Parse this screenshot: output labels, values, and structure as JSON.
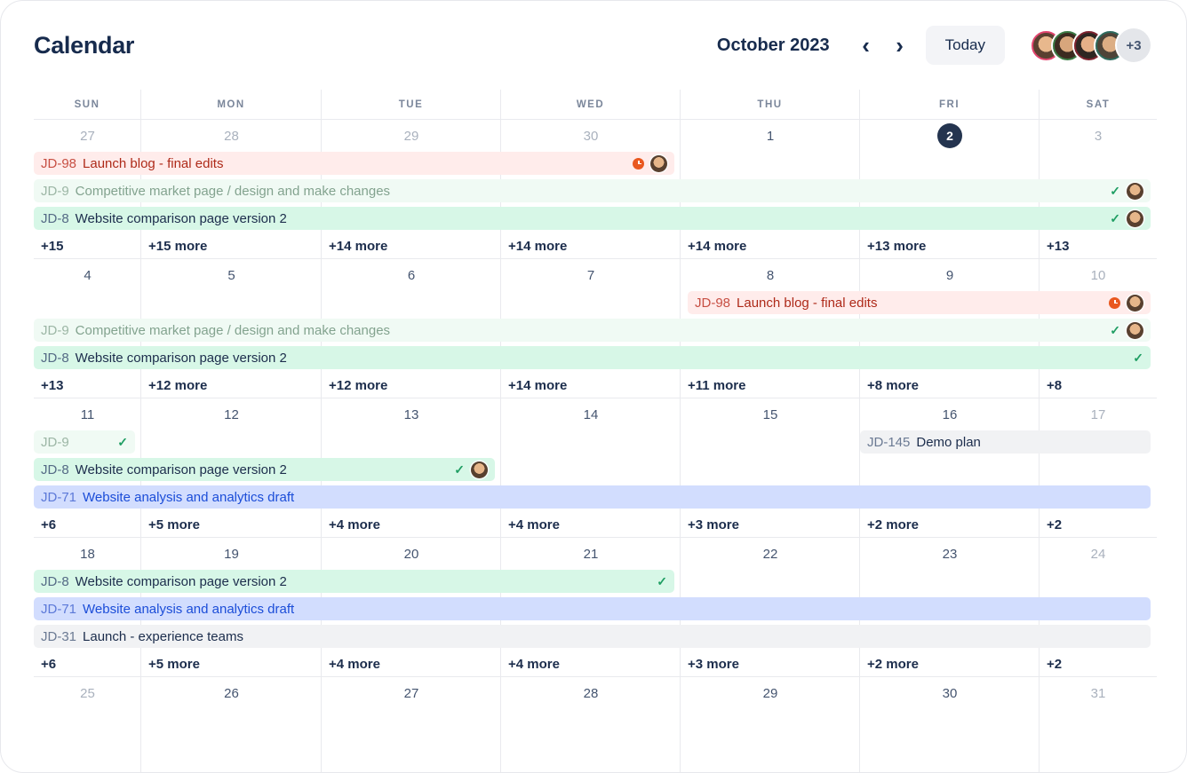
{
  "header": {
    "title": "Calendar",
    "month": "October 2023",
    "today_button": "Today",
    "avatar_overflow": "+3"
  },
  "icons": {
    "prev": "‹",
    "next": "›",
    "check": "✓"
  },
  "colors": {
    "accent_navy": "#172b4d",
    "today_circle": "#24344f",
    "event_red_bg": "#ffeceb",
    "event_red_text": "#ae2a19",
    "event_green_bg": "#d7f7e7",
    "event_green_done_bg": "#f0faf4",
    "event_green_done_text": "#83a38f",
    "event_blue_bg": "#d2ddfe",
    "event_blue_text": "#1b4dd8",
    "event_gray_bg": "#f1f2f4",
    "check_green": "#1f9e63",
    "overdue_orange": "#e9581f"
  },
  "day_headers": [
    "SUN",
    "MON",
    "TUE",
    "WED",
    "THU",
    "FRI",
    "SAT"
  ],
  "weeks": [
    {
      "dates": [
        "27",
        "28",
        "29",
        "30",
        "1",
        "2",
        "3"
      ],
      "events": [
        {
          "key": "JD-98",
          "summary": "Launch blog - final edits"
        },
        {
          "key": "JD-9",
          "summary": "Competitive market page / design and make changes"
        },
        {
          "key": "JD-8",
          "summary": "Website comparison page version 2"
        }
      ],
      "more": [
        "+15",
        "+15 more",
        "+14 more",
        "+14 more",
        "+14 more",
        "+13 more",
        "+13"
      ]
    },
    {
      "dates": [
        "4",
        "5",
        "6",
        "7",
        "8",
        "9",
        "10"
      ],
      "events": [
        {
          "key": "JD-98",
          "summary": "Launch blog - final edits"
        },
        {
          "key": "JD-9",
          "summary": "Competitive market page / design and make changes"
        },
        {
          "key": "JD-8",
          "summary": "Website comparison page version 2"
        }
      ],
      "more": [
        "+13",
        "+12 more",
        "+12 more",
        "+14 more",
        "+11 more",
        "+8 more",
        "+8"
      ]
    },
    {
      "dates": [
        "11",
        "12",
        "13",
        "14",
        "15",
        "16",
        "17"
      ],
      "events": [
        {
          "key": "JD-9",
          "summary": ""
        },
        {
          "key": "JD-145",
          "summary": "Demo plan"
        },
        {
          "key": "JD-8",
          "summary": "Website comparison page version 2"
        },
        {
          "key": "JD-71",
          "summary": "Website analysis and analytics draft"
        }
      ],
      "more": [
        "+6",
        "+5 more",
        "+4 more",
        "+4 more",
        "+3 more",
        "+2 more",
        "+2"
      ]
    },
    {
      "dates": [
        "18",
        "19",
        "20",
        "21",
        "22",
        "23",
        "24"
      ],
      "events": [
        {
          "key": "JD-8",
          "summary": "Website comparison page version 2"
        },
        {
          "key": "JD-71",
          "summary": "Website analysis and analytics draft"
        },
        {
          "key": "JD-31",
          "summary": "Launch - experience teams"
        }
      ],
      "more": [
        "+6",
        "+5 more",
        "+4 more",
        "+4 more",
        "+3 more",
        "+2 more",
        "+2"
      ]
    },
    {
      "dates": [
        "25",
        "26",
        "27",
        "28",
        "29",
        "30",
        "31"
      ],
      "events": [],
      "more": []
    }
  ]
}
